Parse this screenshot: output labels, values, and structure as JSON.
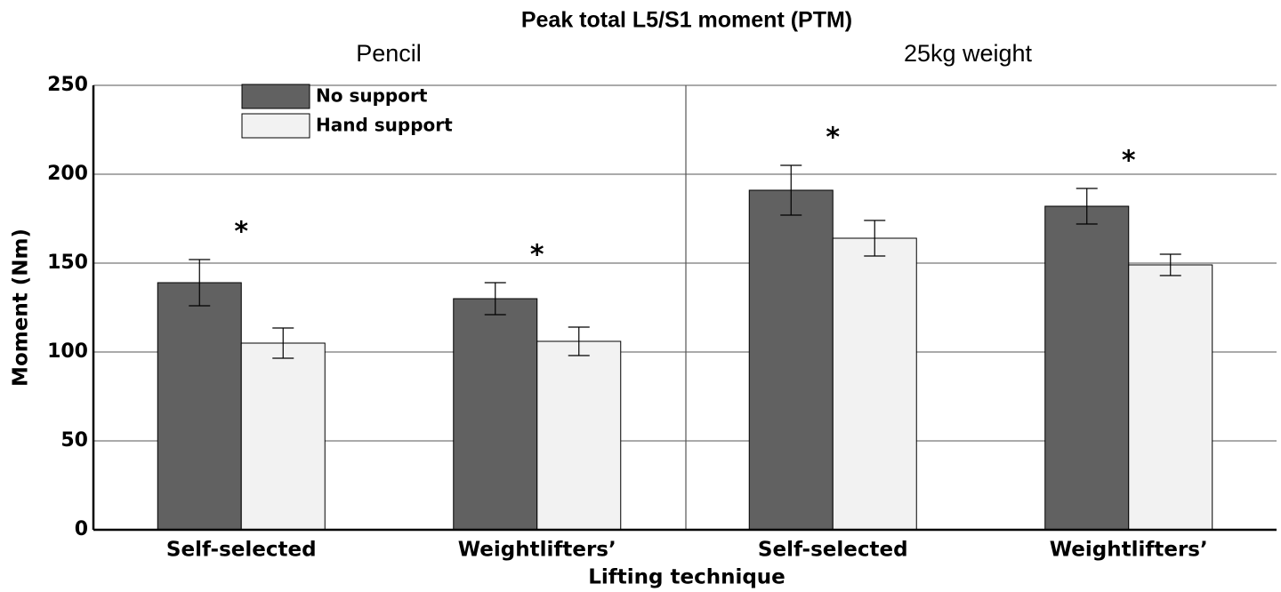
{
  "chart_data": {
    "type": "bar",
    "title": "Peak total L5/S1 moment (PTM)",
    "groups": [
      "Pencil",
      "25kg weight"
    ],
    "categories": [
      "Self-selected",
      "Weightlifters’",
      "Self-selected",
      "Weightlifters’"
    ],
    "x_label": "Lifting technique",
    "y_label": "Moment (Nm)",
    "series": [
      {
        "name": "No support",
        "color": "#616161",
        "values": [
          139,
          130,
          191,
          182
        ],
        "errors": [
          13,
          9,
          14,
          10
        ]
      },
      {
        "name": "Hand support",
        "color": "#f2f2f2",
        "values": [
          105,
          106,
          164,
          149
        ],
        "errors": [
          8.5,
          8,
          10,
          6
        ]
      }
    ],
    "annotations": [
      "*",
      "*",
      "*",
      "*"
    ],
    "ylim": [
      0,
      250
    ],
    "yticks": [
      0,
      50,
      100,
      150,
      200,
      250
    ],
    "grid": true
  }
}
